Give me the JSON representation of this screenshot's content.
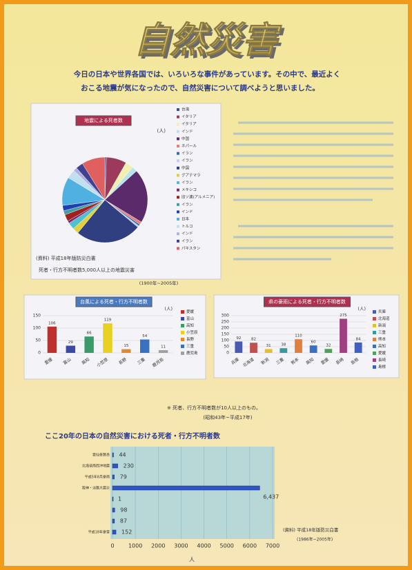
{
  "header": {
    "title": "自然災害",
    "intro": [
      "今日の日本や世界各国では、いろいろな事件があっています。その中で、最近よく",
      "おこる地震が気になったので、自然災害について調べようと思いました。"
    ]
  },
  "pie": {
    "type": "pie",
    "title": "地震による死者数",
    "unit": "(人)",
    "labels": [
      "台湾",
      "イタリア",
      "イタリア",
      "インド",
      "中国",
      "ネパール",
      "イラン",
      "イラン",
      "中国",
      "グアテマラ",
      "イラン",
      "メキシコ",
      "旧ソ連(アルメニア)",
      "イラン",
      "インド",
      "日本",
      "トルコ",
      "インド",
      "イラン",
      "パキスタン"
    ],
    "values": [
      5600,
      74611,
      30000,
      19000,
      200000,
      10700,
      6400,
      5800,
      242800,
      22800,
      25000,
      9500,
      25000,
      15000,
      20000,
      105385,
      32700,
      13800,
      26796,
      86000
    ],
    "colors": [
      "#3b4f9a",
      "#9b3a5a",
      "#f2efb0",
      "#b9e3ef",
      "#5a2a6a",
      "#e8807a",
      "#3a6ab0",
      "#c9c9f0",
      "#2f3f7f",
      "#e0d040",
      "#50c0d0",
      "#7a2a6a",
      "#a02020",
      "#40a0a0",
      "#2040b0",
      "#50b0e0",
      "#c0e0f0",
      "#b0b0e0",
      "#404090",
      "#e06060"
    ],
    "source": "(資料) 平成18年版防災白書",
    "note": "死者・行方不明者数5,000人以上の地震災害",
    "period": "(1900年~2005年)"
  },
  "bar_left": {
    "type": "bar",
    "title": "台風による死者・行方不明者数",
    "unit": "(人)",
    "categories": [
      "愛媛",
      "富山",
      "高知",
      "小笠原",
      "長野",
      "三重",
      "鹿児島"
    ],
    "values": [
      106,
      29,
      66,
      119,
      15,
      54,
      11
    ],
    "colors": [
      "#c0302a",
      "#3a4aa0",
      "#3a9a6a",
      "#e8d020",
      "#e08a30",
      "#3a70c0",
      "#a0a0a0"
    ],
    "ylim": [
      0,
      150
    ],
    "yticks": [
      0,
      50,
      100,
      150
    ]
  },
  "bar_right": {
    "type": "bar",
    "title": "県の豪雨による死者・行方不明者数",
    "unit": "(人)",
    "categories": [
      "兵庫",
      "北海道",
      "新潟",
      "三重",
      "熊本",
      "高知",
      "愛媛",
      "長崎",
      "島根"
    ],
    "values": [
      92,
      82,
      31,
      38,
      110,
      60,
      32,
      275,
      84
    ],
    "colors": [
      "#4a5ab0",
      "#c05050",
      "#e0c030",
      "#3a9a9a",
      "#e08040",
      "#3a70c0",
      "#50a060",
      "#a04080",
      "#4060c0"
    ],
    "ylim": [
      0,
      300
    ],
    "yticks": [
      0,
      50,
      100,
      150,
      200,
      250,
      300
    ]
  },
  "notes": [
    "※ 死者、行方不明者数が10人以上のもの。",
    "(昭和43年~平成17年)"
  ],
  "hbar": {
    "type": "hbar",
    "title": "ここ20年の日本の自然災害における死者・行方不明者数",
    "categories": [
      "雲仙普賢岳",
      "北海道南西沖地震",
      "平成5年8月豪雨",
      "阪神・淡路大震災",
      null,
      null,
      null,
      "平成18年豪雪"
    ],
    "values": [
      44,
      230,
      79,
      6437,
      1,
      98,
      87,
      152
    ],
    "value_labels": [
      "44",
      "230",
      "79",
      "6,437",
      "1",
      "98",
      "87",
      "152"
    ],
    "color": "#2f55c0",
    "xlim": [
      0,
      7000
    ],
    "xticks": [
      0,
      1000,
      2000,
      3000,
      4000,
      5000,
      6000,
      7000
    ],
    "xlabel": "人",
    "source": "(資料) 平成18年版防災白書",
    "period": "(1986年~2005年)"
  }
}
